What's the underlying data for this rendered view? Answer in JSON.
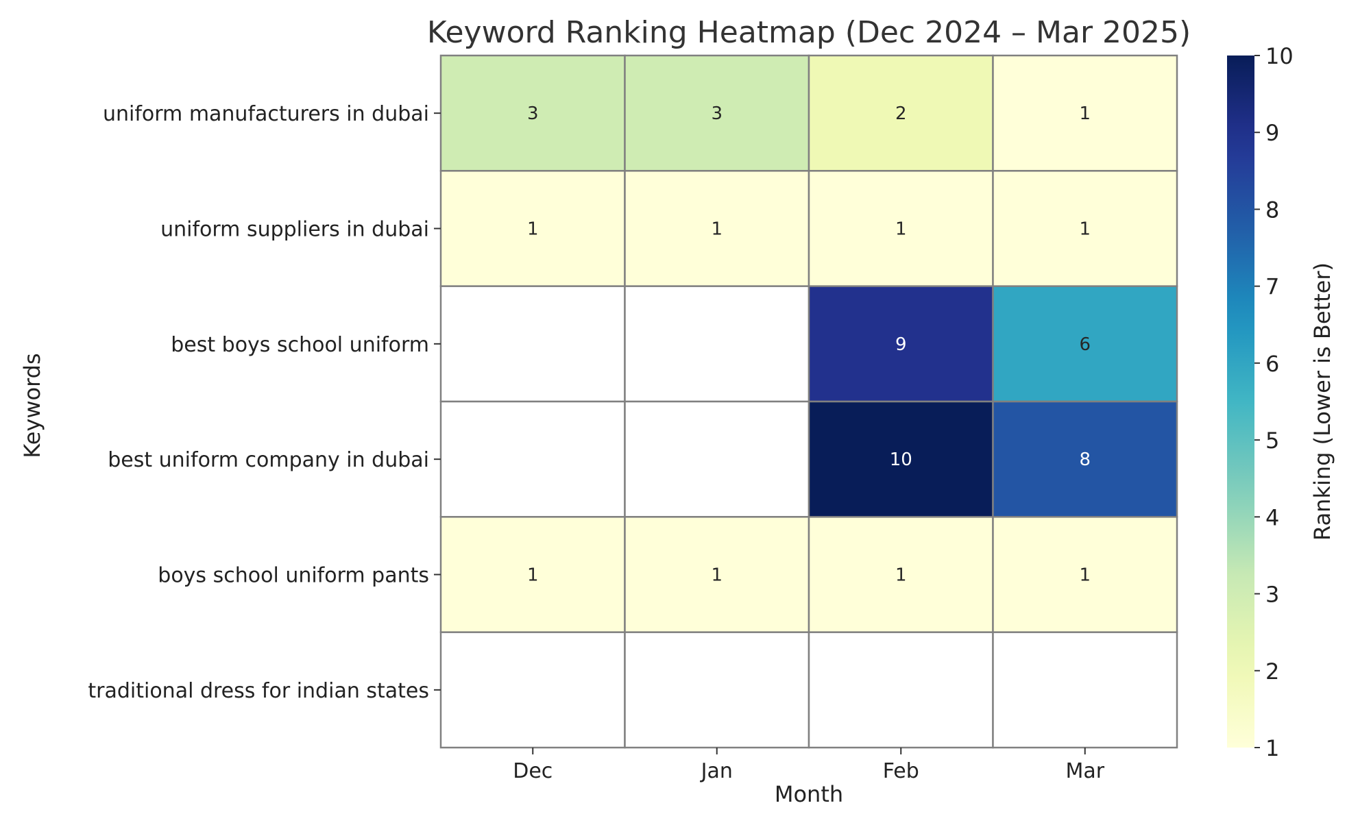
{
  "chart_data": {
    "type": "heatmap",
    "title": "Keyword Ranking Heatmap (Dec 2024 – Mar 2025)",
    "xlabel": "Month",
    "ylabel": "Keywords",
    "x_categories": [
      "Dec",
      "Jan",
      "Feb",
      "Mar"
    ],
    "y_categories": [
      "uniform manufacturers in dubai",
      "uniform suppliers in dubai",
      "best boys school uniform",
      "best uniform company in dubai",
      "boys school uniform pants",
      "traditional dress for indian states"
    ],
    "values": [
      [
        3,
        3,
        2,
        1
      ],
      [
        1,
        1,
        1,
        1
      ],
      [
        null,
        null,
        9,
        6
      ],
      [
        null,
        null,
        10,
        8
      ],
      [
        1,
        1,
        1,
        1
      ],
      [
        null,
        null,
        null,
        null
      ]
    ],
    "colorbar": {
      "label": "Ranking (Lower is Better)",
      "min": 1,
      "max": 10,
      "ticks": [
        1,
        2,
        3,
        4,
        5,
        6,
        7,
        8,
        9,
        10
      ],
      "colormap": "YlGnBu"
    },
    "missing_color": "#ffffff",
    "grid_color": "#808080"
  }
}
